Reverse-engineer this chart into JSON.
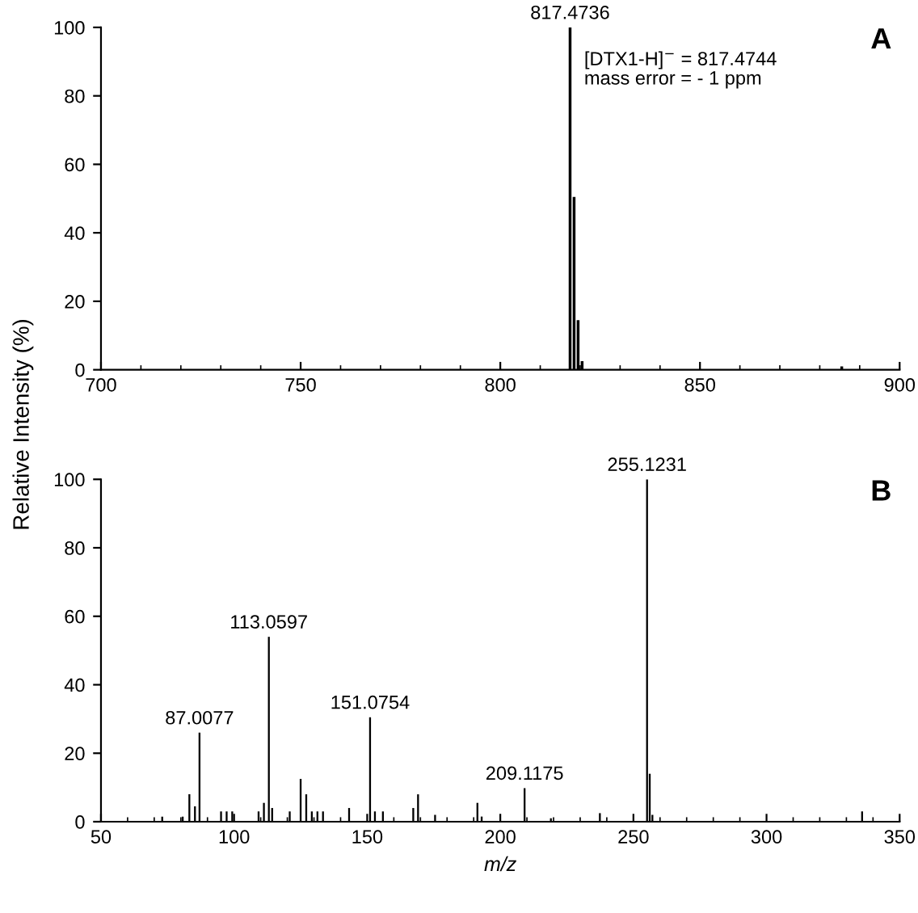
{
  "chart_data": [
    {
      "type": "bar",
      "title": "A",
      "ylabel": "Relative Intensity (%)",
      "x": [
        817.4736,
        818.477,
        819.48,
        820.483,
        885.5
      ],
      "values": [
        100,
        50.5,
        14.5,
        2.5,
        1
      ],
      "color": "#000000",
      "xlim": [
        700,
        900
      ],
      "xticks": [
        700,
        750,
        800,
        850,
        900
      ],
      "ylim": [
        0,
        100
      ],
      "yticks": [
        0,
        20,
        40,
        60,
        80,
        100
      ],
      "grid": false,
      "annotations": [
        {
          "text": "817.4736",
          "x": 817.4736,
          "y": 100
        },
        "[DTX1-H]$^{−}$ = 817.4744\nmass error = - 1 ppm"
      ]
    },
    {
      "type": "bar",
      "title": "B",
      "xlabel": "m/z",
      "x": [
        73,
        80.7,
        83.2,
        85.3,
        87.0077,
        95.1,
        97.2,
        99.3,
        109.2,
        111.2,
        113.0597,
        114.3,
        120.9,
        125,
        127.1,
        129.2,
        131.3,
        133.4,
        143.2,
        151.0754,
        152.9,
        155.9,
        167.3,
        169.1,
        175.5,
        191.4,
        193,
        209.1175,
        219,
        237.4,
        255.1231,
        256.13,
        257.13,
        335.9
      ],
      "values": [
        1.5,
        1.5,
        8,
        4.5,
        26,
        3,
        3,
        3,
        3,
        5.5,
        54,
        4,
        3,
        12.5,
        8,
        3,
        3,
        3,
        4,
        30.5,
        3,
        3,
        4,
        8,
        2,
        5.5,
        1.5,
        9.8,
        1,
        2.5,
        100,
        14,
        2,
        3
      ],
      "color": "#000000",
      "xlim": [
        50,
        350
      ],
      "xticks": [
        50,
        100,
        150,
        200,
        250,
        300,
        350
      ],
      "ylim": [
        0,
        100
      ],
      "yticks": [
        0,
        20,
        40,
        60,
        80,
        100
      ],
      "grid": false,
      "annotations": [
        {
          "text": "87.0077",
          "x": 87.0077,
          "y": 26
        },
        {
          "text": "113.0597",
          "x": 113.0597,
          "y": 54
        },
        {
          "text": "151.0754",
          "x": 151.0754,
          "y": 30.5
        },
        {
          "text": "209.1175",
          "x": 209.1175,
          "y": 9.8
        },
        {
          "text": "255.1231",
          "x": 255.1231,
          "y": 100
        }
      ]
    }
  ]
}
